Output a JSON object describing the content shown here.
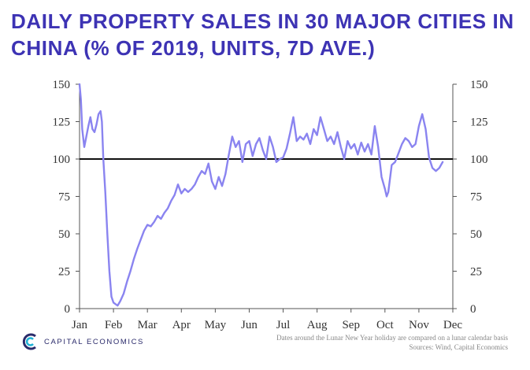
{
  "chart_data": {
    "type": "line",
    "title": "DAILY PROPERTY SALES IN 30 MAJOR CITIES IN CHINA (% OF 2019, UNITS, 7D AVE.)",
    "xlabel": "",
    "ylabel": "",
    "x_tick_labels": [
      "Jan",
      "Feb",
      "Mar",
      "Apr",
      "May",
      "Jun",
      "Jul",
      "Aug",
      "Sep",
      "Oct",
      "Nov",
      "Dec"
    ],
    "y_ticks": [
      0,
      25,
      50,
      75,
      100,
      125,
      150
    ],
    "ylim": [
      0,
      150
    ],
    "xlim": [
      0,
      11
    ],
    "reference_line": 100,
    "series": [
      {
        "name": "Daily property sales, 30 major cities (% of 2019)",
        "color": "#8a84f0",
        "x": [
          0.0,
          0.04,
          0.08,
          0.14,
          0.2,
          0.26,
          0.32,
          0.38,
          0.44,
          0.5,
          0.56,
          0.62,
          0.66,
          0.7,
          0.76,
          0.82,
          0.88,
          0.94,
          1.0,
          1.06,
          1.12,
          1.2,
          1.3,
          1.4,
          1.5,
          1.6,
          1.7,
          1.8,
          1.9,
          2.0,
          2.1,
          2.2,
          2.3,
          2.4,
          2.5,
          2.6,
          2.7,
          2.8,
          2.9,
          3.0,
          3.1,
          3.2,
          3.3,
          3.4,
          3.5,
          3.6,
          3.7,
          3.8,
          3.9,
          4.0,
          4.1,
          4.2,
          4.3,
          4.4,
          4.5,
          4.6,
          4.7,
          4.8,
          4.9,
          5.0,
          5.1,
          5.2,
          5.3,
          5.4,
          5.5,
          5.6,
          5.7,
          5.8,
          5.9,
          6.0,
          6.1,
          6.2,
          6.3,
          6.4,
          6.5,
          6.6,
          6.7,
          6.8,
          6.9,
          7.0,
          7.1,
          7.2,
          7.3,
          7.4,
          7.5,
          7.6,
          7.7,
          7.8,
          7.9,
          8.0,
          8.1,
          8.2,
          8.3,
          8.4,
          8.5,
          8.6,
          8.7,
          8.8,
          8.9,
          9.0,
          9.05,
          9.1,
          9.2,
          9.3,
          9.4,
          9.5,
          9.6,
          9.7,
          9.8,
          9.9,
          10.0,
          10.1,
          10.2,
          10.3,
          10.4,
          10.5,
          10.6,
          10.7
        ],
        "values": [
          150,
          140,
          120,
          108,
          115,
          122,
          128,
          120,
          118,
          123,
          130,
          132,
          125,
          100,
          78,
          50,
          25,
          8,
          4,
          3,
          2,
          5,
          10,
          18,
          25,
          33,
          40,
          46,
          52,
          56,
          55,
          58,
          62,
          60,
          64,
          67,
          72,
          76,
          83,
          77,
          80,
          78,
          80,
          83,
          88,
          92,
          90,
          97,
          85,
          80,
          88,
          82,
          90,
          103,
          115,
          108,
          112,
          98,
          110,
          112,
          102,
          110,
          114,
          106,
          100,
          115,
          108,
          98,
          100,
          101,
          107,
          117,
          128,
          112,
          115,
          113,
          117,
          110,
          120,
          116,
          128,
          120,
          112,
          115,
          110,
          118,
          108,
          100,
          112,
          107,
          110,
          103,
          111,
          105,
          110,
          103,
          122,
          108,
          88,
          80,
          75,
          78,
          96,
          98,
          104,
          110,
          114,
          112,
          108,
          110,
          122,
          130,
          120,
          101,
          94,
          92,
          94,
          98
        ]
      }
    ]
  },
  "footer": {
    "note": "Dates around the Lunar New Year holiday are compared on a lunar calendar basis",
    "source": "Sources: Wind, Capital Economics",
    "logo_text": "CAPITAL ECONOMICS"
  }
}
